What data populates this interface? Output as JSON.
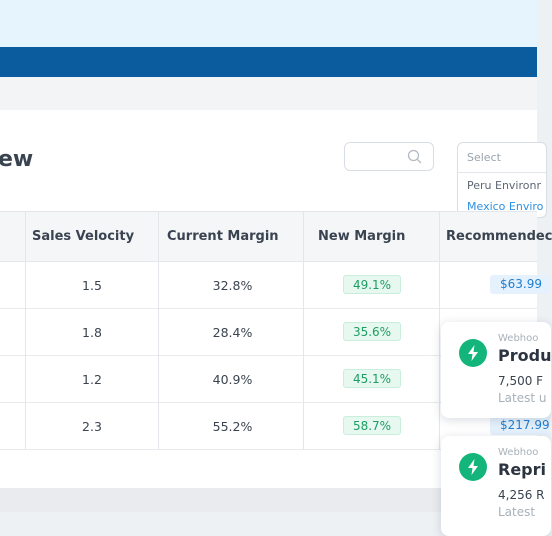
{
  "page": {
    "title": "ew"
  },
  "search": {
    "placeholder": ""
  },
  "dropdown": {
    "placeholder": "Select",
    "options": [
      "Peru Environr",
      "Mexico Enviro"
    ]
  },
  "table": {
    "columns": [
      "Sales Velocity",
      "Current Margin",
      "New Margin",
      "Recommendec"
    ],
    "rows": [
      {
        "sales_velocity": "1.5",
        "current_margin": "32.8%",
        "new_margin": "49.1%",
        "recommended": "$63.99"
      },
      {
        "sales_velocity": "1.8",
        "current_margin": "28.4%",
        "new_margin": "35.6%",
        "recommended": ""
      },
      {
        "sales_velocity": "1.2",
        "current_margin": "40.9%",
        "new_margin": "45.1%",
        "recommended": ""
      },
      {
        "sales_velocity": "2.3",
        "current_margin": "55.2%",
        "new_margin": "58.7%",
        "recommended": "$217.99"
      }
    ]
  },
  "toasts": [
    {
      "source": "Webhoo",
      "title": "Produ",
      "line1": "7,500 F",
      "line2": "Latest u"
    },
    {
      "source": "Webhoo",
      "title": "Repri",
      "line1": "4,256 R",
      "line2": "Latest"
    }
  ],
  "colors": {
    "nav": "#0b5c9e",
    "accent": "#1f7fd1",
    "positive": "#1e9e62",
    "toast_icon": "#13b57a"
  }
}
